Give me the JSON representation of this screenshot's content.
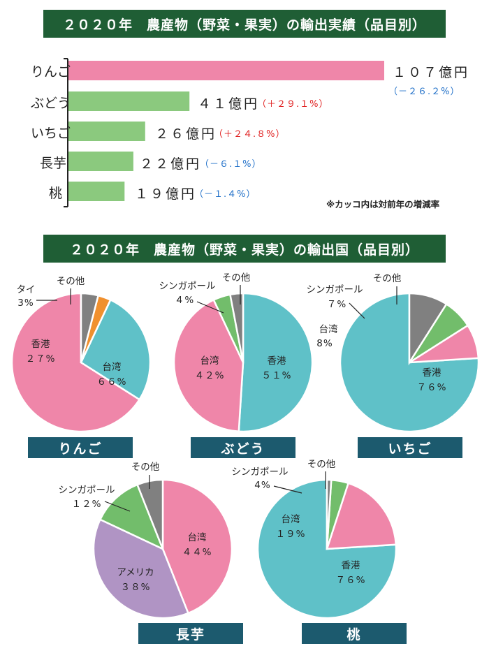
{
  "colors": {
    "banner_bg": "#1f5e35",
    "apple_bar": "#ef86a9",
    "other_bar": "#8bc97e",
    "increase": "#e02020",
    "decrease": "#1f6fc8",
    "pie_label_bg": "#1c5a6e",
    "taiwan": "#ef86a9",
    "hongkong": "#5fc1c8",
    "singapore": "#72bd6b",
    "thailand": "#f0902e",
    "usa": "#b094c4",
    "other": "#808080"
  },
  "chart_data": [
    {
      "type": "bar",
      "orientation": "horizontal",
      "title": "２０２０年　農産物（野菜・果実）の輸出実績（品目別）",
      "categories": [
        "りんご",
        "ぶどう",
        "いちご",
        "長芋",
        "桃"
      ],
      "values": [
        107,
        41,
        26,
        22,
        19
      ],
      "value_labels": [
        "１０７億円",
        "４１億円",
        "２６億円",
        "２２億円",
        "１９億円"
      ],
      "change_labels": [
        "（－２６.２%）",
        "（＋２９.１%）",
        "（＋２４.８%）",
        "（－６.１%）",
        "（－１.４%）"
      ],
      "change_values": [
        -26.2,
        29.1,
        24.8,
        -6.1,
        -1.4
      ],
      "note": "※カッコ内は対前年の増減率"
    },
    {
      "type": "pie",
      "title": "２０２０年　農産物（野菜・果実）の輸出国（品目別）",
      "pies": [
        {
          "name": "りんご",
          "slices": [
            {
              "label": "台湾",
              "value": 66,
              "value_label": "６６%",
              "color": "#ef86a9"
            },
            {
              "label": "香港",
              "value": 27,
              "value_label": "２７%",
              "color": "#5fc1c8"
            },
            {
              "label": "タイ",
              "value": 3,
              "value_label": "3%",
              "color": "#f0902e"
            },
            {
              "label": "その他",
              "value": 4,
              "value_label": "",
              "color": "#808080"
            }
          ]
        },
        {
          "name": "ぶどう",
          "slices": [
            {
              "label": "香港",
              "value": 51,
              "value_label": "５１%",
              "color": "#5fc1c8"
            },
            {
              "label": "台湾",
              "value": 42,
              "value_label": "４２%",
              "color": "#ef86a9"
            },
            {
              "label": "シンガポール",
              "value": 4,
              "value_label": "４%",
              "color": "#72bd6b"
            },
            {
              "label": "その他",
              "value": 3,
              "value_label": "",
              "color": "#808080"
            }
          ]
        },
        {
          "name": "いちご",
          "slices": [
            {
              "label": "香港",
              "value": 76,
              "value_label": "７６%",
              "color": "#5fc1c8"
            },
            {
              "label": "台湾",
              "value": 8,
              "value_label": "8%",
              "color": "#ef86a9"
            },
            {
              "label": "シンガポール",
              "value": 7,
              "value_label": "７%",
              "color": "#72bd6b"
            },
            {
              "label": "その他",
              "value": 9,
              "value_label": "",
              "color": "#808080"
            }
          ]
        },
        {
          "name": "長芋",
          "slices": [
            {
              "label": "台湾",
              "value": 44,
              "value_label": "４４%",
              "color": "#ef86a9"
            },
            {
              "label": "アメリカ",
              "value": 38,
              "value_label": "３８%",
              "color": "#b094c4"
            },
            {
              "label": "シンガポール",
              "value": 12,
              "value_label": "１２%",
              "color": "#72bd6b"
            },
            {
              "label": "その他",
              "value": 6,
              "value_label": "",
              "color": "#808080"
            }
          ]
        },
        {
          "name": "桃",
          "slices": [
            {
              "label": "香港",
              "value": 76,
              "value_label": "７６%",
              "color": "#5fc1c8"
            },
            {
              "label": "台湾",
              "value": 19,
              "value_label": "１９%",
              "color": "#ef86a9"
            },
            {
              "label": "シンガポール",
              "value": 4,
              "value_label": "4%",
              "color": "#72bd6b"
            },
            {
              "label": "その他",
              "value": 1,
              "value_label": "",
              "color": "#808080"
            }
          ]
        }
      ]
    }
  ]
}
